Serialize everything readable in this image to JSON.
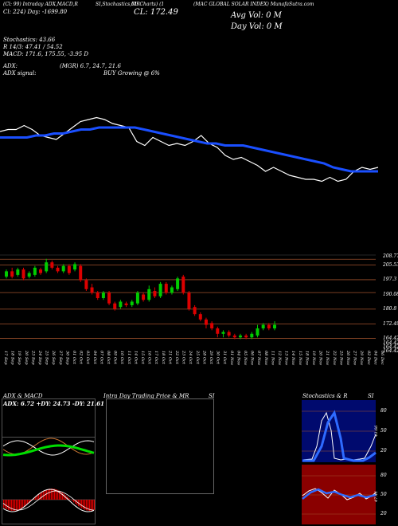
{
  "header": {
    "line1_a": "(Cl: 99) Intraday ADX,MACD,R",
    "line1_b": "SI,Stochastics,MR",
    "line1_c": "Cl: Charts) (1",
    "line1_d": "(MAC GLOBAL SOLAR INDEX) MunafaSutra.com",
    "line2_a": "Cl: 224) Day: -1699.80",
    "close_label": "CL: 172.49",
    "avg_vol": "Avg Vol: 0  M",
    "day_vol": "Day Vol: 0   M"
  },
  "indicators": {
    "stoch": "Stochastics: 43.66",
    "r": "R  14/3: 47.41 / 54.52",
    "macd": "MACD: 171.6,  175.55,  -3.95 D",
    "adx": "ADX:",
    "mgr": "(MGR) 6.7,  24.7,  21.6",
    "adx_signal": "ADX  signal:",
    "buy": "BUY Growing @ 6%"
  },
  "price_levels": [
    "208.77",
    "205.53",
    "197.3",
    "190.08",
    "180.8",
    "172.49",
    "164.42",
    "164.42",
    "164.42",
    "164.42"
  ],
  "date_labels": [
    "17 Sep",
    "18 Sep",
    "19 Sep",
    "20 Sep",
    "23 Sep",
    "24 Sep",
    "25 Sep",
    "26 Sep",
    "27 Sep",
    "30 Sep",
    "01 Oct",
    "02 Oct",
    "03 Oct",
    "04 Oct",
    "07 Oct",
    "08 Oct",
    "09 Oct",
    "10 Oct",
    "11 Oct",
    "14 Oct",
    "15 Oct",
    "16 Oct",
    "17 Oct",
    "18 Oct",
    "21 Oct",
    "22 Oct",
    "23 Oct",
    "24 Oct",
    "25 Oct",
    "28 Oct",
    "29 Oct",
    "30 Oct",
    "31 Oct",
    "01 Nov",
    "04 Nov",
    "05 Nov",
    "06 Nov",
    "07 Nov",
    "08 Nov",
    "11 Nov",
    "12 Nov",
    "13 Nov",
    "14 Nov",
    "15 Nov",
    "18 Nov",
    "19 Nov",
    "20 Nov",
    "21 Nov",
    "22 Nov",
    "25 Nov",
    "26 Nov",
    "27 Nov",
    "29 Nov",
    "02 Dec",
    "04 Dec",
    "06 Dec"
  ],
  "panels": {
    "adx_title": "ADX  & MACD",
    "adx_values": "ADX: 6.72  +DY: 24.73  -DY: 21.61",
    "intraday_title": "Intra  Day Trading Price  & MR",
    "intraday_si": "SI",
    "stoch_title": "Stochastics & R",
    "stoch_si": "SI",
    "stoch_ticks": [
      "80",
      "50",
      "20"
    ],
    "rsi_ticks": [
      "80",
      "50",
      "20"
    ],
    "stoch_readout": "43.66",
    "rsi_readout": "47.41"
  },
  "colors": {
    "up": "#00cc00",
    "down": "#dd0000",
    "ma": "#1a4fff",
    "stoch_bg": "#000a6e",
    "rsi_bg": "#8a0000",
    "grid": "#a0522d"
  },
  "chart_data": {
    "type": "line",
    "title": "MAC GLOBAL SOLAR INDEX",
    "price_close": [
      190,
      191,
      191,
      193,
      191,
      188,
      187,
      186,
      189,
      192,
      195,
      196,
      197,
      196,
      194,
      193,
      192,
      185,
      183,
      187,
      185,
      183,
      184,
      183,
      185,
      188,
      184,
      182,
      178,
      176,
      177,
      175,
      173,
      170,
      172,
      170,
      168,
      167,
      166,
      166,
      165,
      167,
      165,
      166,
      170,
      172,
      171,
      172
    ],
    "ma": [
      187,
      187,
      187,
      187,
      188,
      188,
      189,
      189,
      190,
      191,
      191,
      192,
      192,
      192,
      192,
      192,
      191,
      190,
      189,
      188,
      187,
      186,
      185,
      184,
      184,
      183,
      183,
      183,
      182,
      181,
      180,
      179,
      178,
      177,
      176,
      175,
      174,
      172,
      171,
      170,
      170,
      170,
      170
    ],
    "candles": [
      {
        "o": 199,
        "c": 202,
        "h": 203,
        "l": 198
      },
      {
        "o": 202,
        "c": 199,
        "h": 204,
        "l": 198
      },
      {
        "o": 200,
        "c": 203,
        "h": 204,
        "l": 199
      },
      {
        "o": 203,
        "c": 198,
        "h": 204,
        "l": 197
      },
      {
        "o": 199,
        "c": 201,
        "h": 202,
        "l": 198
      },
      {
        "o": 200,
        "c": 204,
        "h": 205,
        "l": 199
      },
      {
        "o": 203,
        "c": 201,
        "h": 204,
        "l": 200
      },
      {
        "o": 202,
        "c": 207,
        "h": 209,
        "l": 201
      },
      {
        "o": 207,
        "c": 204,
        "h": 208,
        "l": 203
      },
      {
        "o": 204,
        "c": 202,
        "h": 205,
        "l": 201
      },
      {
        "o": 202,
        "c": 205,
        "h": 206,
        "l": 201
      },
      {
        "o": 205,
        "c": 201,
        "h": 206,
        "l": 200
      },
      {
        "o": 203,
        "c": 206,
        "h": 207,
        "l": 202
      },
      {
        "o": 205,
        "c": 197,
        "h": 206,
        "l": 196
      },
      {
        "o": 197,
        "c": 192,
        "h": 198,
        "l": 191
      },
      {
        "o": 193,
        "c": 190,
        "h": 195,
        "l": 189
      },
      {
        "o": 190,
        "c": 187,
        "h": 191,
        "l": 186
      },
      {
        "o": 187,
        "c": 190,
        "h": 191,
        "l": 186
      },
      {
        "o": 190,
        "c": 184,
        "h": 191,
        "l": 183
      },
      {
        "o": 184,
        "c": 181,
        "h": 185,
        "l": 180
      },
      {
        "o": 182,
        "c": 185,
        "h": 186,
        "l": 181
      },
      {
        "o": 184,
        "c": 183,
        "h": 185,
        "l": 182
      },
      {
        "o": 183,
        "c": 185,
        "h": 186,
        "l": 182
      },
      {
        "o": 184,
        "c": 190,
        "h": 191,
        "l": 183
      },
      {
        "o": 189,
        "c": 186,
        "h": 190,
        "l": 185
      },
      {
        "o": 186,
        "c": 192,
        "h": 194,
        "l": 185
      },
      {
        "o": 191,
        "c": 188,
        "h": 193,
        "l": 187
      },
      {
        "o": 188,
        "c": 195,
        "h": 196,
        "l": 187
      },
      {
        "o": 195,
        "c": 190,
        "h": 196,
        "l": 189
      },
      {
        "o": 190,
        "c": 193,
        "h": 194,
        "l": 189
      },
      {
        "o": 192,
        "c": 198,
        "h": 199,
        "l": 191
      },
      {
        "o": 199,
        "c": 190,
        "h": 200,
        "l": 189
      },
      {
        "o": 190,
        "c": 181,
        "h": 191,
        "l": 180
      },
      {
        "o": 182,
        "c": 178,
        "h": 183,
        "l": 177
      },
      {
        "o": 178,
        "c": 175,
        "h": 179,
        "l": 174
      },
      {
        "o": 175,
        "c": 172,
        "h": 176,
        "l": 170
      },
      {
        "o": 173,
        "c": 170,
        "h": 174,
        "l": 169
      },
      {
        "o": 170,
        "c": 167,
        "h": 171,
        "l": 165
      },
      {
        "o": 167,
        "c": 168,
        "h": 169,
        "l": 165
      },
      {
        "o": 168,
        "c": 166,
        "h": 169,
        "l": 165
      },
      {
        "o": 166,
        "c": 165,
        "h": 167,
        "l": 164
      },
      {
        "o": 165,
        "c": 166,
        "h": 167,
        "l": 164
      },
      {
        "o": 166,
        "c": 165,
        "h": 167,
        "l": 164
      },
      {
        "o": 165,
        "c": 167,
        "h": 168,
        "l": 164
      },
      {
        "o": 166,
        "c": 170,
        "h": 172,
        "l": 165
      },
      {
        "o": 170,
        "c": 172,
        "h": 173,
        "l": 169
      },
      {
        "o": 172,
        "c": 170,
        "h": 173,
        "l": 169
      },
      {
        "o": 170,
        "c": 172,
        "h": 174,
        "l": 169
      }
    ],
    "ylim": [
      162,
      212
    ]
  }
}
